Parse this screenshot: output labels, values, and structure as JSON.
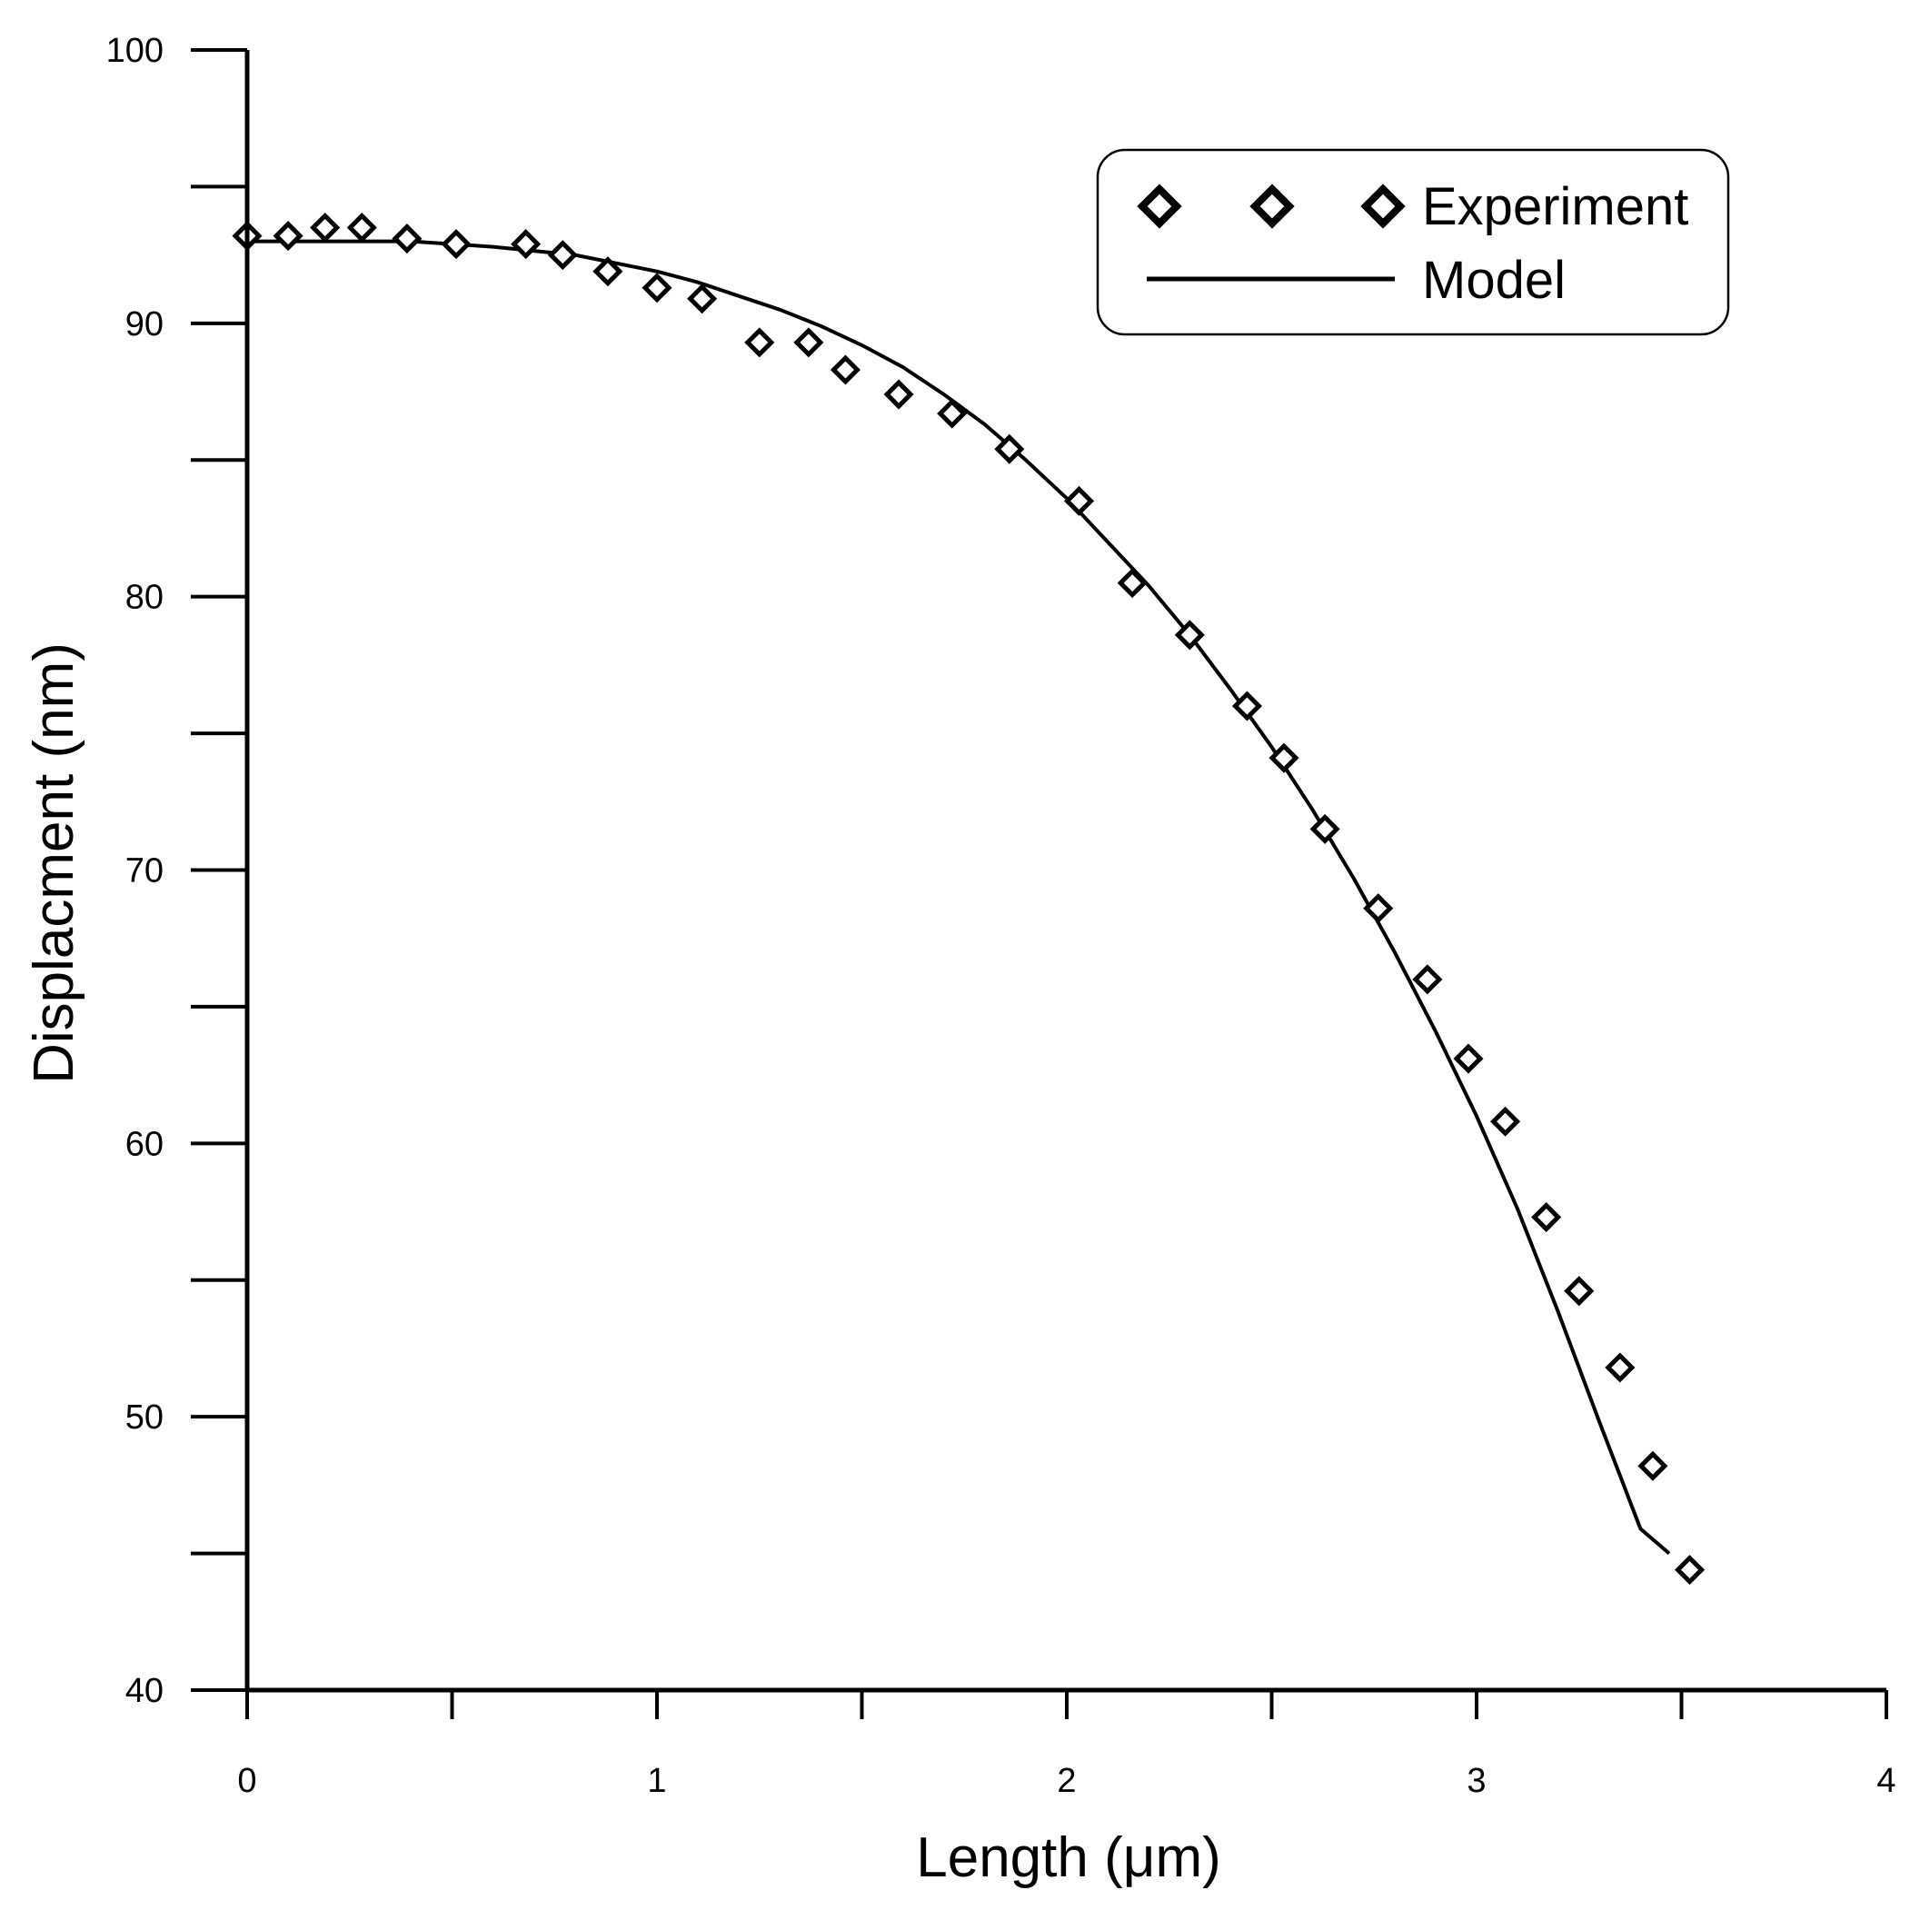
{
  "chart_data": {
    "type": "scatter",
    "title": "",
    "xlabel": "Length (μm)",
    "ylabel": "Displacment (nm)",
    "xlim": [
      0,
      4
    ],
    "ylim": [
      40,
      100
    ],
    "xticks": [
      0,
      1,
      2,
      3,
      4
    ],
    "yticks": [
      40,
      50,
      60,
      70,
      80,
      90,
      100
    ],
    "x_tick_labels": [
      "0",
      "1",
      "2",
      "3",
      "4"
    ],
    "y_tick_labels": [
      "40",
      "50",
      "60",
      "70",
      "80",
      "90",
      "100"
    ],
    "legend_position": "top-right",
    "series": [
      {
        "name": "Experiment",
        "kind": "markers",
        "marker": "diamond",
        "x": [
          0.0,
          0.1,
          0.19,
          0.28,
          0.39,
          0.51,
          0.68,
          0.77,
          0.88,
          1.0,
          1.11,
          1.25,
          1.37,
          1.46,
          1.59,
          1.72,
          1.86,
          2.03,
          2.16,
          2.3,
          2.44,
          2.53,
          2.63,
          2.76,
          2.88,
          2.98,
          3.07,
          3.17,
          3.25,
          3.35,
          3.43,
          3.52
        ],
        "y": [
          93.2,
          93.2,
          93.5,
          93.5,
          93.1,
          92.9,
          92.9,
          92.5,
          91.9,
          91.3,
          90.9,
          89.3,
          89.3,
          88.3,
          87.4,
          86.7,
          85.4,
          83.5,
          80.5,
          78.6,
          76.0,
          74.1,
          71.5,
          68.6,
          66.0,
          63.1,
          60.8,
          57.3,
          54.6,
          51.8,
          48.2,
          44.4
        ]
      },
      {
        "name": "Model",
        "kind": "line",
        "x": [
          0.0,
          0.2,
          0.4,
          0.6,
          0.8,
          1.0,
          1.1,
          1.2,
          1.3,
          1.4,
          1.5,
          1.6,
          1.7,
          1.8,
          1.9,
          2.0,
          2.1,
          2.2,
          2.3,
          2.4,
          2.5,
          2.6,
          2.7,
          2.8,
          2.9,
          3.0,
          3.1,
          3.2,
          3.3,
          3.4,
          3.47
        ],
        "y": [
          93.0,
          93.0,
          93.0,
          92.8,
          92.5,
          91.9,
          91.5,
          91.0,
          90.5,
          89.9,
          89.2,
          88.4,
          87.4,
          86.3,
          85.0,
          83.6,
          82.0,
          80.4,
          78.6,
          76.6,
          74.5,
          72.2,
          69.7,
          67.0,
          64.1,
          61.0,
          57.6,
          53.8,
          49.8,
          45.9,
          45.0
        ]
      }
    ]
  },
  "legend": {
    "items": [
      {
        "label": "Experiment",
        "symbol": "diamond"
      },
      {
        "label": "Model",
        "symbol": "line"
      }
    ]
  }
}
